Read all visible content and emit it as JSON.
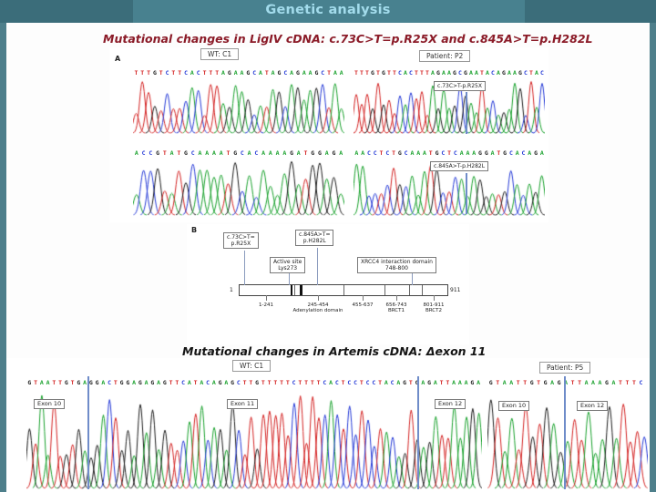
{
  "header": {
    "title": "Genetic analysis"
  },
  "ligiv": {
    "title": "Mutational changes in LigIV cDNA: c.73C>T=p.R25X and c.845A>T=p.H282L",
    "panel_label": "A",
    "wt_label": "WT: C1",
    "patient_label": "Patient: P2",
    "row1": {
      "wt_seq": "TTTGTCTTCACTTTAGAAGCATAGCAGAAGCTAA",
      "patient_seq": "TTTGTGTTCACTTTAGAAGCGAATACAGAAGCTAC",
      "mutation_label": "c.73C>T-p.R25X"
    },
    "row2": {
      "wt_seq": "ACCGTATGCAAAATGCACAAAAGATGGAGA",
      "patient_seq": "AACCTCTGCAAATGCTCAAAGGATGCACAGA",
      "mutation_label": "c.845A>T-p.H282L"
    }
  },
  "panel_b": {
    "panel_label": "B",
    "mutation1_line1": "c.73C>T=",
    "mutation1_line2": "p.R25X",
    "mutation2_line1": "c.845A>T=",
    "mutation2_line2": "p.H282L",
    "active_site_line1": "Active site",
    "active_site_line2": "Lys273",
    "xrcc4_line1": "XRCC4 interaction domain",
    "xrcc4_line2": "748-800",
    "bar_start": "1",
    "bar_end": "911",
    "ticks": [
      {
        "label": "1-241",
        "sub": ""
      },
      {
        "label": "245-454",
        "sub": "Adenylation domain"
      },
      {
        "label": "455-637",
        "sub": ""
      },
      {
        "label": "656-743",
        "sub": "BRCT1"
      },
      {
        "label": "801-911",
        "sub": "BRCT2"
      }
    ]
  },
  "artemis": {
    "title": "Mutational changes in Artemis cDNA: Δexon 11",
    "wt_label": "WT: C1",
    "patient_label": "Patient: P5",
    "wt_seq": "GTAATTGTGAGGACTGGAGAGAGTTCATACAGAGCTTGTTTTTCTTTTCACTCCTCCTACAGTGAGATTAAAGA",
    "patient_seq": "GTAATTGTGAGATTAAAGATTTC",
    "wt_exons": [
      "Exon 10",
      "Exon 11",
      "Exon 12"
    ],
    "patient_exons": [
      "Exon 10",
      "Exon 12"
    ]
  },
  "colors": {
    "base_A": "#16a02a",
    "base_C": "#2338d6",
    "base_G": "#1b1b1b",
    "base_T": "#d32121",
    "accent_teal": "#4e7f8b",
    "title_blue": "#a3dcec",
    "heading_red": "#8b1b28",
    "pointer_blue": "#6f8cc9"
  }
}
